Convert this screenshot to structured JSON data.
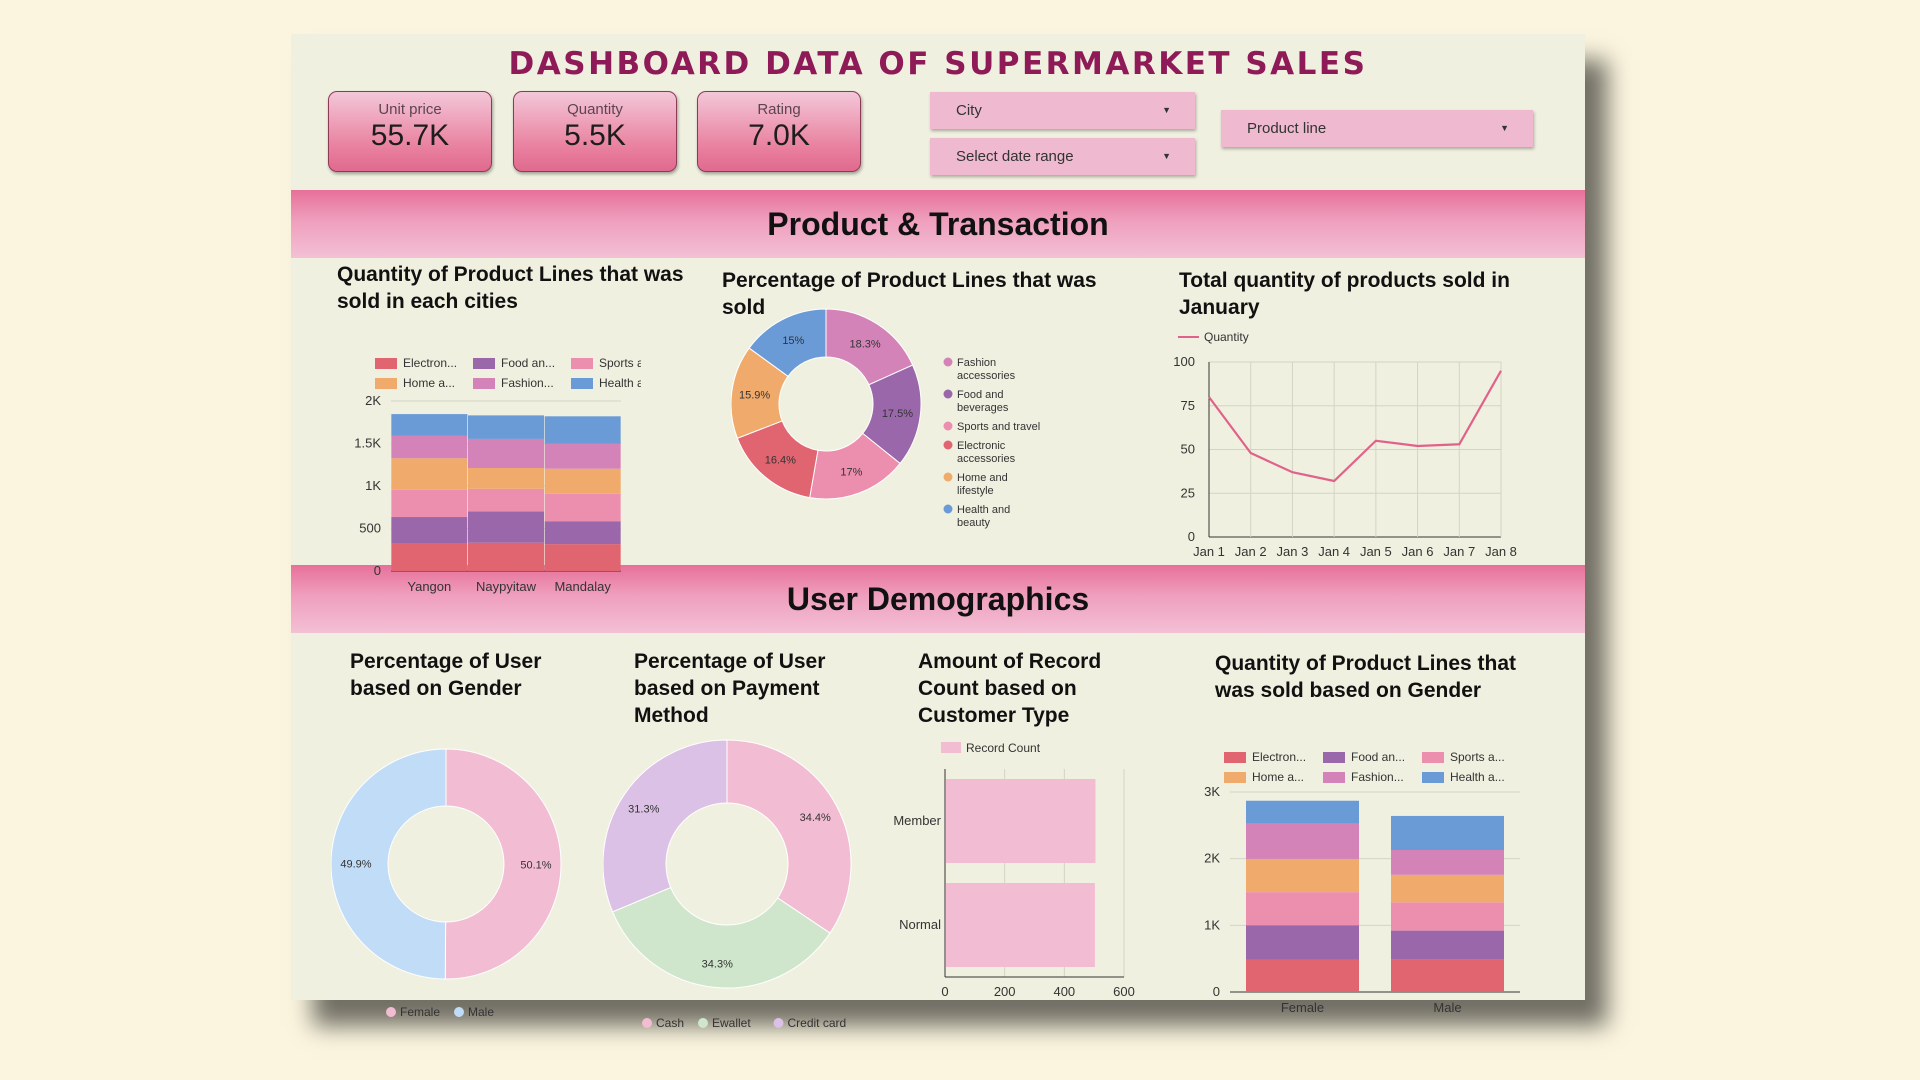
{
  "header": {
    "title": "DASHBOARD DATA OF SUPERMARKET SALES"
  },
  "kpis": [
    {
      "label": "Unit price",
      "value": "55.7K"
    },
    {
      "label": "Quantity",
      "value": "5.5K"
    },
    {
      "label": "Rating",
      "value": "7.0K"
    }
  ],
  "filters": {
    "city": "City",
    "date": "Select date range",
    "product": "Product line",
    "arrow": "▼"
  },
  "sections": {
    "product": "Product & Transaction",
    "users": "User Demographics"
  },
  "colors": {
    "pink_band": "#ef9fbd",
    "title": "#8e1a57",
    "line": "#e0628a"
  },
  "chart_data": [
    {
      "id": "city_bar",
      "type": "bar",
      "stacked": true,
      "title": "Quantity of Product Lines that was sold in each cities",
      "categories": [
        "Yangon",
        "Naypyitaw",
        "Mandalay"
      ],
      "ylim": [
        0,
        2000
      ],
      "yticks": [
        "0",
        "500",
        "1K",
        "1.5K",
        "2K"
      ],
      "legend": [
        "Electron...",
        "Food an...",
        "Sports a...",
        "Home a...",
        "Fashion...",
        "Health a..."
      ],
      "series": [
        {
          "name": "Electronic accessories",
          "color": "#e06570",
          "values": [
            322,
            333,
            316
          ]
        },
        {
          "name": "Food and beverages",
          "color": "#9a68aa",
          "values": [
            313,
            369,
            270
          ]
        },
        {
          "name": "Sports and travel",
          "color": "#ec8faf",
          "values": [
            320,
            265,
            322
          ]
        },
        {
          "name": "Home and lifestyle",
          "color": "#f0ab6c",
          "values": [
            371,
            245,
            295
          ]
        },
        {
          "name": "Fashion accessories",
          "color": "#d483b8",
          "values": [
            263,
            342,
            297
          ]
        },
        {
          "name": "Health and beauty",
          "color": "#6b9bd6",
          "values": [
            257,
            277,
            320
          ]
        }
      ]
    },
    {
      "id": "product_donut",
      "type": "pie",
      "donut": true,
      "title": "Percentage of Product Lines that was sold",
      "slices": [
        {
          "label": "Fashion accessories",
          "lines": [
            "Fashion",
            "accessories"
          ],
          "value": 18.3,
          "color": "#d483b8"
        },
        {
          "label": "Food and beverages",
          "lines": [
            "Food and",
            "beverages"
          ],
          "value": 17.5,
          "color": "#9a68aa"
        },
        {
          "label": "Sports and travel",
          "lines": [
            "Sports and travel"
          ],
          "value": 17,
          "color": "#ec8faf"
        },
        {
          "label": "Electronic accessories",
          "lines": [
            "Electronic",
            "accessories"
          ],
          "value": 16.4,
          "color": "#e06570"
        },
        {
          "label": "Home and lifestyle",
          "lines": [
            "Home and",
            "lifestyle"
          ],
          "value": 15.9,
          "color": "#f0ab6c"
        },
        {
          "label": "Health and beauty",
          "lines": [
            "Health and",
            "beauty"
          ],
          "value": 15,
          "color": "#6b9bd6"
        }
      ],
      "slice_labels": [
        "18.3%",
        "17.5%",
        "17%",
        "16.4%",
        "15.9%",
        "15%"
      ]
    },
    {
      "id": "jan_line",
      "type": "line",
      "title": "Total quantity of products sold in January",
      "legend": "Quantity",
      "x": [
        "Jan 1",
        "Jan 2",
        "Jan 3",
        "Jan 4",
        "Jan 5",
        "Jan 6",
        "Jan 7",
        "Jan 8"
      ],
      "y": [
        80,
        48,
        37,
        32,
        55,
        52,
        53,
        95
      ],
      "ylim": [
        0,
        100
      ],
      "yticks": [
        "0",
        "25",
        "50",
        "75",
        "100"
      ]
    },
    {
      "id": "gender_donut",
      "type": "pie",
      "donut": true,
      "title": "Percentage of User based on Gender",
      "slices": [
        {
          "label": "Female",
          "value": 50.1,
          "color": "#f2bcd2"
        },
        {
          "label": "Male",
          "value": 49.9,
          "color": "#c1dcf6"
        }
      ],
      "slice_labels": [
        "50.1%",
        "49.9%"
      ]
    },
    {
      "id": "payment_donut",
      "type": "pie",
      "donut": true,
      "title": "Percentage of User based on Payment Method",
      "slices": [
        {
          "label": "Cash",
          "value": 34.4,
          "color": "#f2bcd2"
        },
        {
          "label": "Ewallet",
          "value": 34.3,
          "color": "#cfe6cc"
        },
        {
          "label": "Credit card",
          "value": 31.3,
          "color": "#dcc1e6"
        }
      ],
      "slice_labels": [
        "34.4%",
        "34.3%",
        "31.3%"
      ]
    },
    {
      "id": "customer_bar",
      "type": "bar",
      "orientation": "horizontal",
      "title": "Amount of Record Count based on Customer Type",
      "legend": "Record Count",
      "categories": [
        "Member",
        "Normal"
      ],
      "values": [
        501,
        499
      ],
      "xlim": [
        0,
        600
      ],
      "xticks": [
        "0",
        "200",
        "400",
        "600"
      ],
      "color": "#f2bcd2"
    },
    {
      "id": "gender_bar",
      "type": "bar",
      "stacked": true,
      "title": "Quantity of Product Lines that was sold based on Gender",
      "categories": [
        "Female",
        "Male"
      ],
      "ylim": [
        0,
        3000
      ],
      "yticks": [
        "0",
        "1K",
        "2K",
        "3K"
      ],
      "legend": [
        "Electron...",
        "Food an...",
        "Sports a...",
        "Home a...",
        "Fashion...",
        "Health a..."
      ],
      "series": [
        {
          "name": "Electronic accessories",
          "color": "#e06570",
          "values": [
            488,
            483
          ]
        },
        {
          "name": "Food and beverages",
          "color": "#9a68aa",
          "values": [
            514,
            438
          ]
        },
        {
          "name": "Sports and travel",
          "color": "#ec8faf",
          "values": [
            496,
            424
          ]
        },
        {
          "name": "Home and lifestyle",
          "color": "#f0ab6c",
          "values": [
            498,
            413
          ]
        },
        {
          "name": "Fashion accessories",
          "color": "#d483b8",
          "values": [
            530,
            372
          ]
        },
        {
          "name": "Health and beauty",
          "color": "#6b9bd6",
          "values": [
            343,
            511
          ]
        }
      ]
    }
  ]
}
